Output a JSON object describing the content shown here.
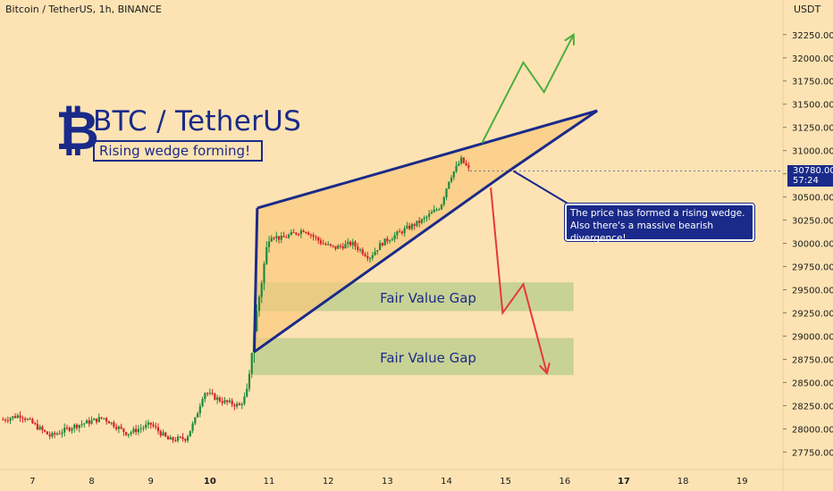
{
  "header": {
    "symbol": "Bitcoin / TetherUS, 1h, BINANCE",
    "currency": "USDT"
  },
  "brand": {
    "logo_icon": "bitcoin-icon",
    "logo_glyph": "₿",
    "title": "BTC / TetherUS",
    "subtitle": "Rising wedge forming!"
  },
  "annotations": {
    "callout": "The price has formed a rising wedge. Also there's a massive bearish divergence!",
    "fvg_upper": "Fair Value Gap",
    "fvg_lower": "Fair Value Gap"
  },
  "price_tag": {
    "price": "30780.00",
    "countdown": "57:24"
  },
  "colors": {
    "background": "#fde3b3",
    "candle_up": "#1e8a3c",
    "candle_down": "#d8202a",
    "wedge_line": "#1a2a8a",
    "wedge_fill": "#fbc77a",
    "fvg_fill": "#c2cf90",
    "projection_up": "#4caf3e",
    "projection_down": "#e8383a"
  },
  "chart_data": {
    "type": "candlestick",
    "title": "Bitcoin / TetherUS, 1h, BINANCE",
    "xlabel": "",
    "ylabel": "USDT",
    "y_ticks": [
      "27750.00",
      "28000.00",
      "28250.00",
      "28500.00",
      "28750.00",
      "29000.00",
      "29250.00",
      "29500.00",
      "29750.00",
      "30000.00",
      "30250.00",
      "30500.00",
      "30750.00",
      "31000.00",
      "31250.00",
      "31500.00",
      "31750.00",
      "32000.00",
      "32250.00"
    ],
    "x_ticks": [
      "7",
      "8",
      "9",
      "10",
      "11",
      "12",
      "13",
      "14",
      "15",
      "16",
      "17",
      "18",
      "19"
    ],
    "ylim": [
      27600,
      32450
    ],
    "xlim": [
      6.45,
      19.6
    ],
    "grid": false,
    "path_segments": [
      {
        "t": 6.5,
        "p": 28100
      },
      {
        "t": 6.8,
        "p": 28150
      },
      {
        "t": 7.3,
        "p": 27920
      },
      {
        "t": 7.7,
        "p": 28030
      },
      {
        "t": 8.2,
        "p": 28120
      },
      {
        "t": 8.6,
        "p": 27950
      },
      {
        "t": 9.0,
        "p": 28050
      },
      {
        "t": 9.3,
        "p": 27880
      },
      {
        "t": 9.6,
        "p": 27900
      },
      {
        "t": 9.75,
        "p": 28100
      },
      {
        "t": 9.9,
        "p": 28400
      },
      {
        "t": 10.2,
        "p": 28300
      },
      {
        "t": 10.5,
        "p": 28250
      },
      {
        "t": 10.65,
        "p": 28400
      },
      {
        "t": 10.72,
        "p": 28950
      },
      {
        "t": 10.85,
        "p": 29500
      },
      {
        "t": 11.0,
        "p": 30100
      },
      {
        "t": 11.2,
        "p": 30050
      },
      {
        "t": 11.6,
        "p": 30150
      },
      {
        "t": 11.9,
        "p": 30000
      },
      {
        "t": 12.1,
        "p": 29950
      },
      {
        "t": 12.4,
        "p": 30000
      },
      {
        "t": 12.7,
        "p": 29850
      },
      {
        "t": 12.9,
        "p": 30000
      },
      {
        "t": 13.3,
        "p": 30150
      },
      {
        "t": 13.6,
        "p": 30250
      },
      {
        "t": 13.9,
        "p": 30400
      },
      {
        "t": 14.05,
        "p": 30700
      },
      {
        "t": 14.25,
        "p": 30900
      },
      {
        "t": 14.4,
        "p": 30780
      }
    ],
    "wedge": {
      "upper": [
        {
          "t": 10.8,
          "p": 30380
        },
        {
          "t": 16.55,
          "p": 31430
        }
      ],
      "lower": [
        {
          "t": 10.75,
          "p": 28830
        },
        {
          "t": 15.1,
          "p": 30800
        }
      ],
      "apex": {
        "t": 16.55,
        "p": 31430
      }
    },
    "fair_value_gaps": [
      {
        "label": "Fair Value Gap",
        "t_start": 10.8,
        "t_end": 16.15,
        "top": 29580,
        "bottom": 29270
      },
      {
        "label": "Fair Value Gap",
        "t_start": 10.72,
        "t_end": 16.15,
        "top": 28980,
        "bottom": 28580
      }
    ],
    "projections": {
      "bullish": [
        {
          "t": 14.6,
          "p": 31080
        },
        {
          "t": 15.3,
          "p": 31950
        },
        {
          "t": 15.65,
          "p": 31630
        },
        {
          "t": 16.15,
          "p": 32250
        }
      ],
      "bearish": [
        {
          "t": 14.75,
          "p": 30600
        },
        {
          "t": 14.95,
          "p": 29250
        },
        {
          "t": 15.3,
          "p": 29560
        },
        {
          "t": 15.7,
          "p": 28600
        }
      ]
    },
    "last_price": 30780
  }
}
